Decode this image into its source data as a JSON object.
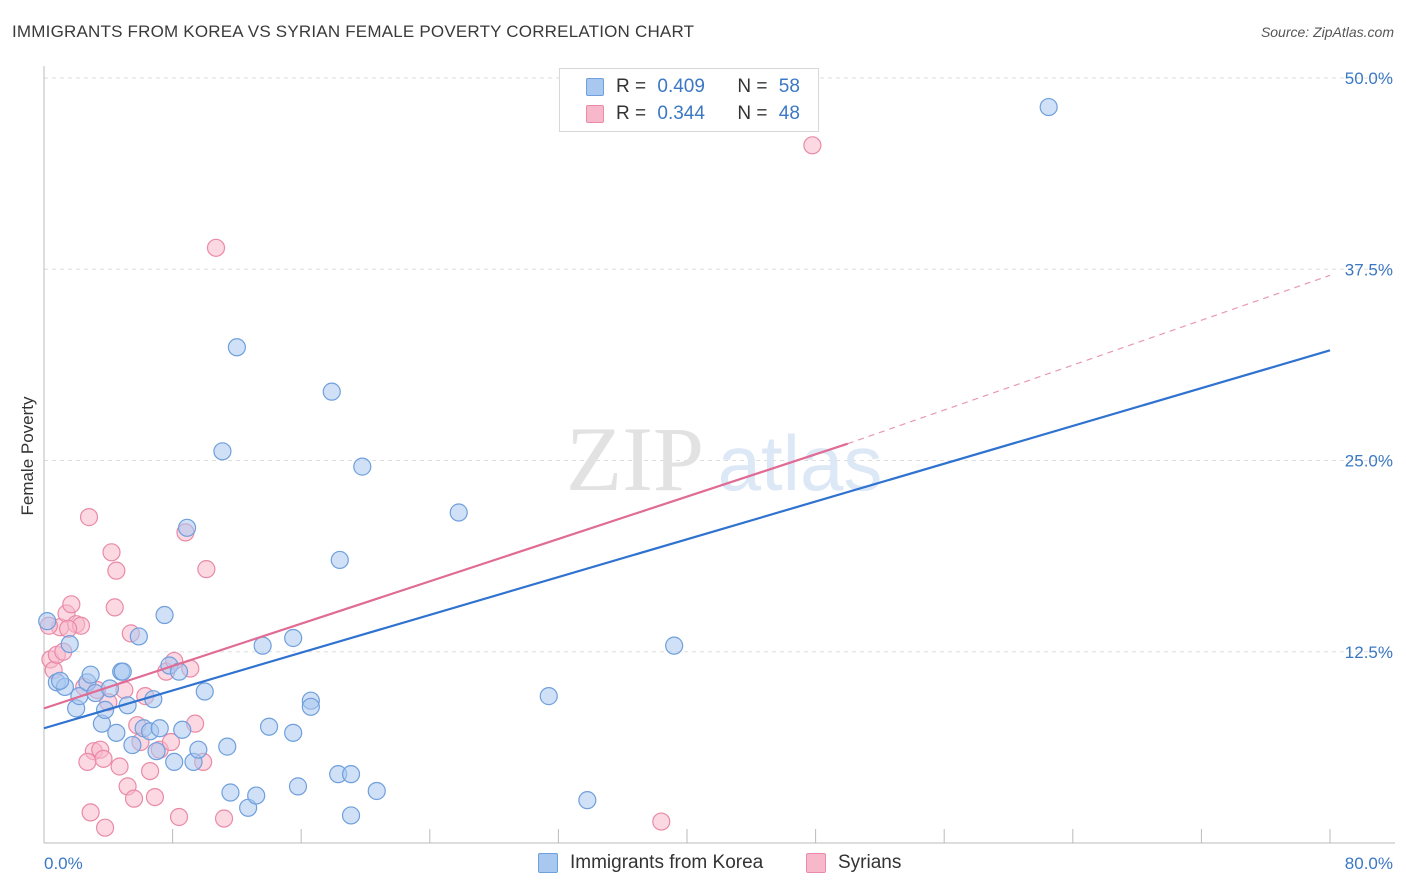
{
  "title": "IMMIGRANTS FROM KOREA VS SYRIAN FEMALE POVERTY CORRELATION CHART",
  "source": "Source: ZipAtlas.com",
  "watermark": {
    "zip": "ZIP",
    "atlas": "atlas"
  },
  "legend_top": {
    "korea": {
      "r_label": "R =",
      "r_value": "0.409",
      "n_label": "N =",
      "n_value": "58"
    },
    "syria": {
      "r_label": "R =",
      "r_value": "0.344",
      "n_label": "N =",
      "n_value": "48"
    }
  },
  "legend_bottom": {
    "korea": "Immigrants from Korea",
    "syria": "Syrians"
  },
  "colors": {
    "korea_fill": "#a9c8f0",
    "korea_stroke": "#6f9fdc",
    "korea_line": "#2f72d0",
    "syria_fill": "#f7b8cb",
    "syria_stroke": "#ea8aa7",
    "syria_line": "#e06b94",
    "tick": "#3b78c4",
    "grid": "#dddddd"
  },
  "chart_data": {
    "type": "scatter",
    "title": "IMMIGRANTS FROM KOREA VS SYRIAN FEMALE POVERTY CORRELATION CHART",
    "xlabel": "",
    "ylabel": "Female Poverty",
    "xlim": [
      0,
      80
    ],
    "ylim": [
      0,
      50
    ],
    "x_tick_labels": [
      {
        "value": 0,
        "label": "0.0%"
      },
      {
        "value": 80,
        "label": "80.0%"
      }
    ],
    "y_tick_labels": [
      {
        "value": 50,
        "label": "50.0%"
      },
      {
        "value": 37.5,
        "label": "37.5%"
      },
      {
        "value": 25,
        "label": "25.0%"
      },
      {
        "value": 12.5,
        "label": "12.5%"
      }
    ],
    "series": [
      {
        "name": "Immigrants from Korea",
        "r": 0.409,
        "n": 58,
        "trend": {
          "x0": 0,
          "y0": 7.5,
          "x1": 80,
          "y1": 32.2
        },
        "points": [
          [
            0.2,
            14.5
          ],
          [
            0.8,
            10.5
          ],
          [
            1.3,
            10.2
          ],
          [
            1.6,
            13.0
          ],
          [
            2.0,
            8.8
          ],
          [
            2.2,
            9.6
          ],
          [
            2.7,
            10.5
          ],
          [
            3.2,
            9.8
          ],
          [
            3.6,
            7.8
          ],
          [
            4.1,
            10.1
          ],
          [
            4.5,
            7.2
          ],
          [
            4.8,
            11.2
          ],
          [
            5.2,
            9.0
          ],
          [
            5.5,
            6.4
          ],
          [
            5.9,
            13.5
          ],
          [
            6.2,
            7.5
          ],
          [
            6.6,
            7.3
          ],
          [
            7.0,
            6.0
          ],
          [
            7.5,
            14.9
          ],
          [
            7.8,
            11.6
          ],
          [
            8.1,
            5.3
          ],
          [
            8.4,
            11.2
          ],
          [
            8.6,
            7.4
          ],
          [
            8.9,
            20.6
          ],
          [
            9.3,
            5.3
          ],
          [
            9.6,
            6.1
          ],
          [
            10.0,
            9.9
          ],
          [
            11.4,
            6.3
          ],
          [
            11.6,
            3.3
          ],
          [
            11.1,
            25.6
          ],
          [
            12.0,
            32.4
          ],
          [
            12.7,
            2.3
          ],
          [
            13.2,
            3.1
          ],
          [
            13.6,
            12.9
          ],
          [
            14.0,
            7.6
          ],
          [
            15.5,
            13.4
          ],
          [
            15.5,
            7.2
          ],
          [
            15.8,
            3.7
          ],
          [
            16.6,
            9.3
          ],
          [
            16.6,
            8.9
          ],
          [
            17.9,
            29.5
          ],
          [
            18.3,
            4.5
          ],
          [
            18.4,
            18.5
          ],
          [
            19.1,
            4.5
          ],
          [
            19.1,
            1.8
          ],
          [
            19.8,
            24.6
          ],
          [
            20.7,
            3.4
          ],
          [
            25.8,
            21.6
          ],
          [
            31.4,
            9.6
          ],
          [
            33.8,
            2.8
          ],
          [
            39.2,
            12.9
          ],
          [
            62.5,
            48.1
          ],
          [
            1.0,
            10.6
          ],
          [
            2.9,
            11.0
          ],
          [
            4.9,
            11.2
          ],
          [
            6.8,
            9.4
          ],
          [
            7.2,
            7.5
          ],
          [
            3.8,
            8.7
          ]
        ]
      },
      {
        "name": "Syrians",
        "r": 0.344,
        "n": 48,
        "trend": {
          "x0": 0,
          "y0": 8.8,
          "x1": 50,
          "y1": 26.1,
          "dashed_x1": 80,
          "dashed_y1": 37.1
        },
        "points": [
          [
            0.4,
            12.0
          ],
          [
            0.6,
            11.3
          ],
          [
            0.8,
            12.3
          ],
          [
            1.0,
            14.1
          ],
          [
            1.2,
            12.5
          ],
          [
            1.4,
            15.0
          ],
          [
            1.7,
            15.6
          ],
          [
            2.0,
            14.3
          ],
          [
            2.3,
            14.2
          ],
          [
            2.5,
            10.2
          ],
          [
            2.8,
            21.3
          ],
          [
            2.9,
            2.0
          ],
          [
            3.1,
            6.0
          ],
          [
            3.3,
            10.0
          ],
          [
            3.5,
            6.1
          ],
          [
            3.7,
            5.5
          ],
          [
            3.8,
            1.0
          ],
          [
            4.0,
            9.2
          ],
          [
            4.2,
            19.0
          ],
          [
            4.4,
            15.4
          ],
          [
            4.5,
            17.8
          ],
          [
            4.7,
            5.0
          ],
          [
            5.0,
            10.0
          ],
          [
            5.2,
            3.7
          ],
          [
            5.4,
            13.7
          ],
          [
            5.6,
            2.9
          ],
          [
            5.8,
            7.7
          ],
          [
            6.0,
            6.6
          ],
          [
            6.3,
            9.6
          ],
          [
            6.6,
            4.7
          ],
          [
            6.9,
            3.0
          ],
          [
            7.2,
            6.1
          ],
          [
            7.6,
            11.2
          ],
          [
            7.9,
            6.6
          ],
          [
            8.1,
            11.9
          ],
          [
            8.4,
            1.7
          ],
          [
            8.8,
            20.3
          ],
          [
            9.1,
            11.4
          ],
          [
            9.4,
            7.8
          ],
          [
            9.9,
            5.3
          ],
          [
            10.1,
            17.9
          ],
          [
            10.7,
            38.9
          ],
          [
            11.2,
            1.6
          ],
          [
            2.7,
            5.3
          ],
          [
            47.8,
            45.6
          ],
          [
            38.4,
            1.4
          ],
          [
            0.3,
            14.2
          ],
          [
            1.5,
            14.0
          ]
        ]
      }
    ]
  }
}
